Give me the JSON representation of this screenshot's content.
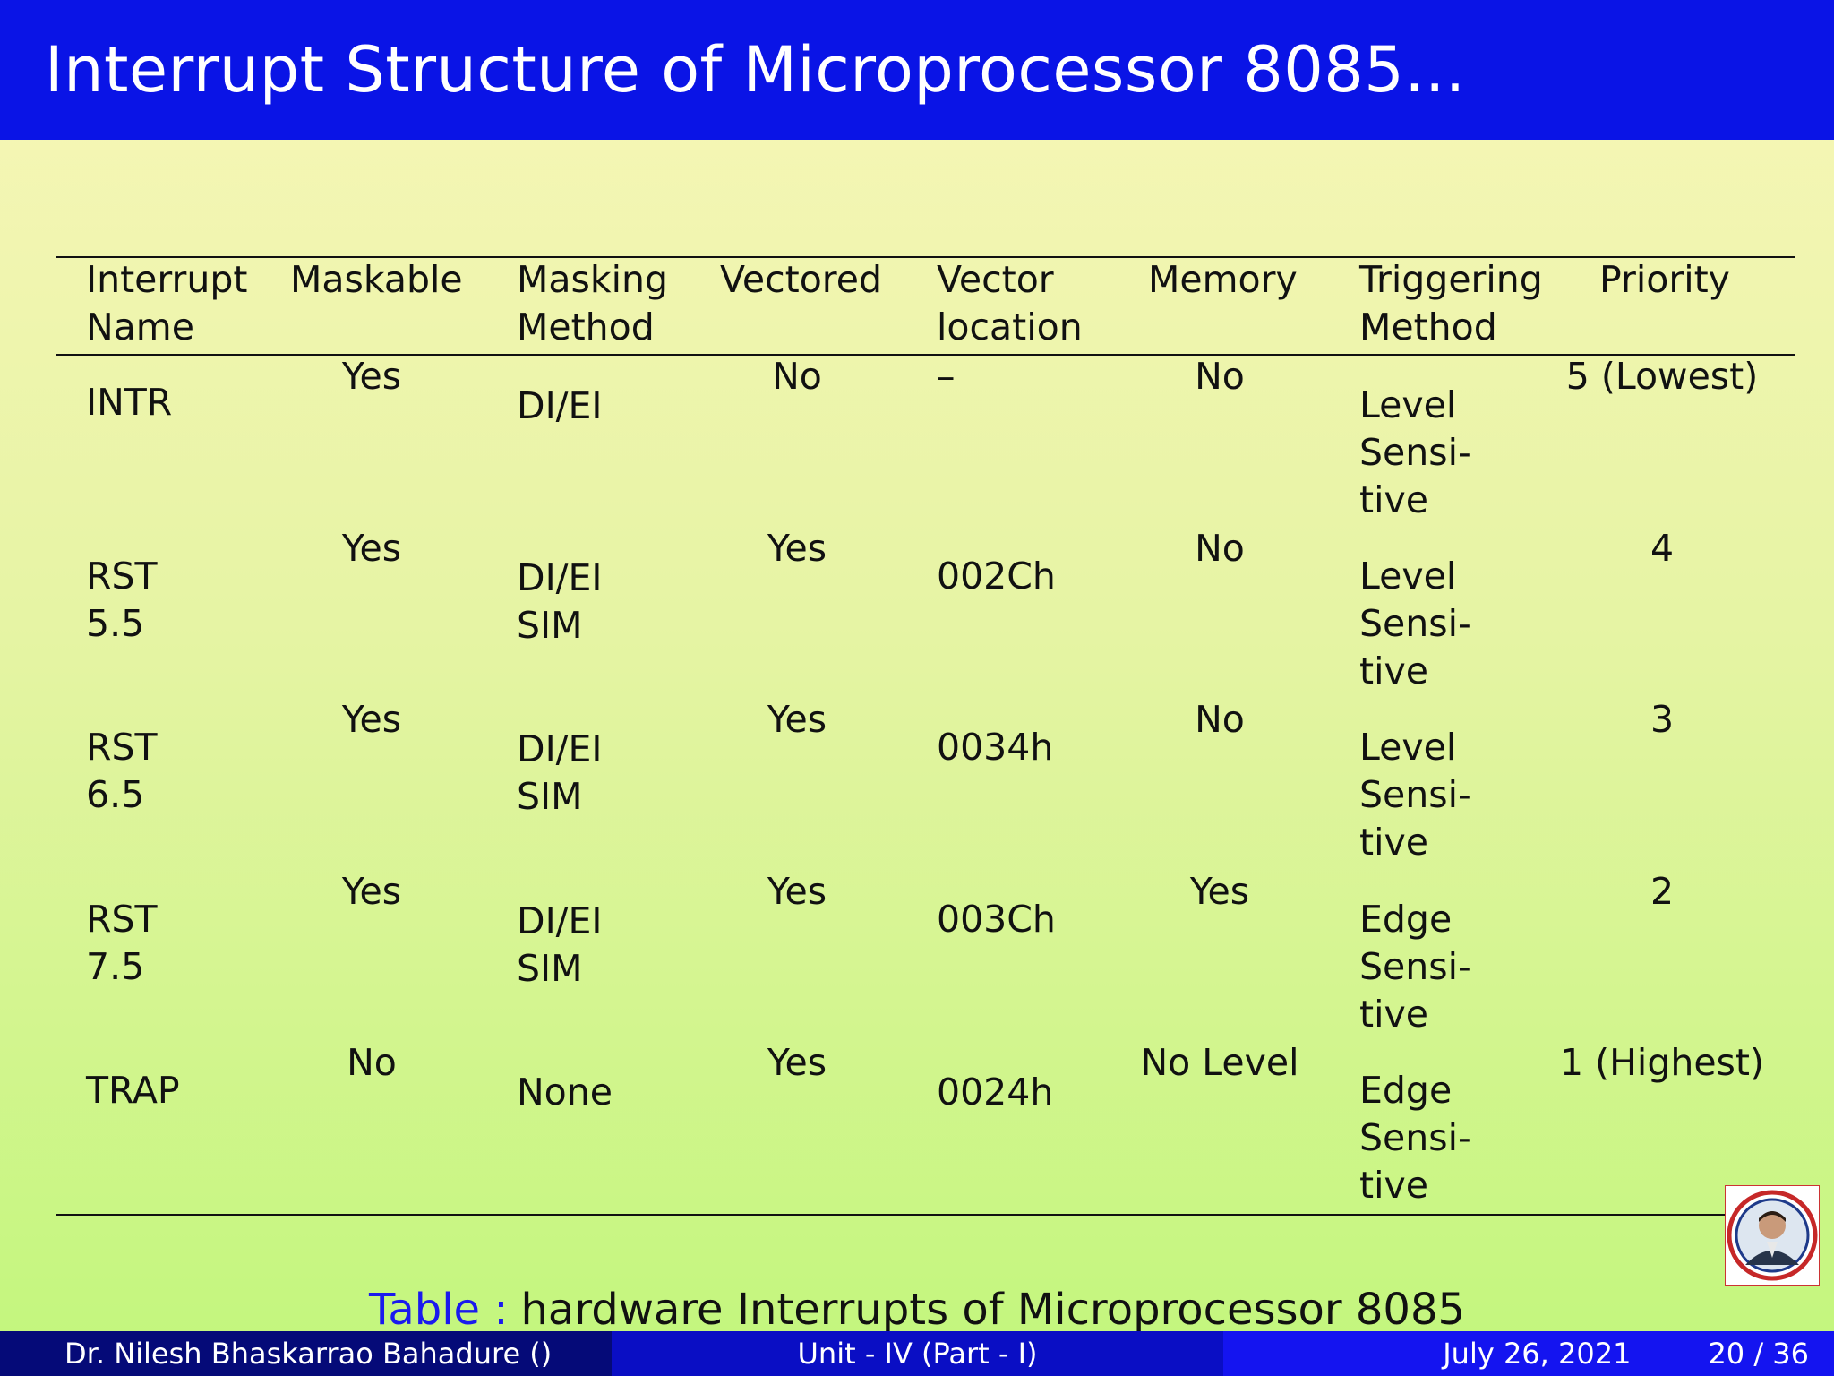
{
  "title": "Interrupt Structure of Microprocessor 8085...",
  "table": {
    "headers": [
      "Interrupt\nName",
      "Maskable",
      "Masking\nMethod",
      "Vectored",
      "Vector\nlocation",
      "Memory",
      "Triggering\nMethod",
      "Priority"
    ],
    "rows": [
      {
        "name": "INTR",
        "maskable": "Yes",
        "masking": "DI/EI",
        "vectored": "No",
        "location": "–",
        "memory": "No",
        "triggering": "Level\nSensi-\ntive",
        "priority": "5 (Lowest)"
      },
      {
        "name": "RST\n5.5",
        "maskable": "Yes",
        "masking": "DI/EI\nSIM",
        "vectored": "Yes",
        "location": "002Ch",
        "memory": "No",
        "triggering": "Level\nSensi-\ntive",
        "priority": "4"
      },
      {
        "name": "RST\n6.5",
        "maskable": "Yes",
        "masking": "DI/EI\nSIM",
        "vectored": "Yes",
        "location": "0034h",
        "memory": "No",
        "triggering": "Level\nSensi-\ntive",
        "priority": "3"
      },
      {
        "name": "RST\n7.5",
        "maskable": "Yes",
        "masking": "DI/EI\nSIM",
        "vectored": "Yes",
        "location": "003Ch",
        "memory": "Yes",
        "triggering": "Edge\nSensi-\ntive",
        "priority": "2"
      },
      {
        "name": "TRAP",
        "maskable": "No",
        "masking": "None",
        "vectored": "Yes",
        "location": "0024h",
        "memory": "No Level",
        "triggering": "Edge\nSensi-\ntive",
        "priority": "1 (Highest)"
      }
    ]
  },
  "caption": {
    "label": "Table :",
    "text": "hardware Interrupts of Microprocessor 8085"
  },
  "footer": {
    "author": "Dr. Nilesh Bhaskarrao Bahadure  ()",
    "unit": "Unit - IV (Part - I)",
    "date": "July 26, 2021",
    "page": "20 / 36"
  },
  "colors": {
    "title_bar": "#0a14e6",
    "caption_label": "#1a1aee"
  }
}
